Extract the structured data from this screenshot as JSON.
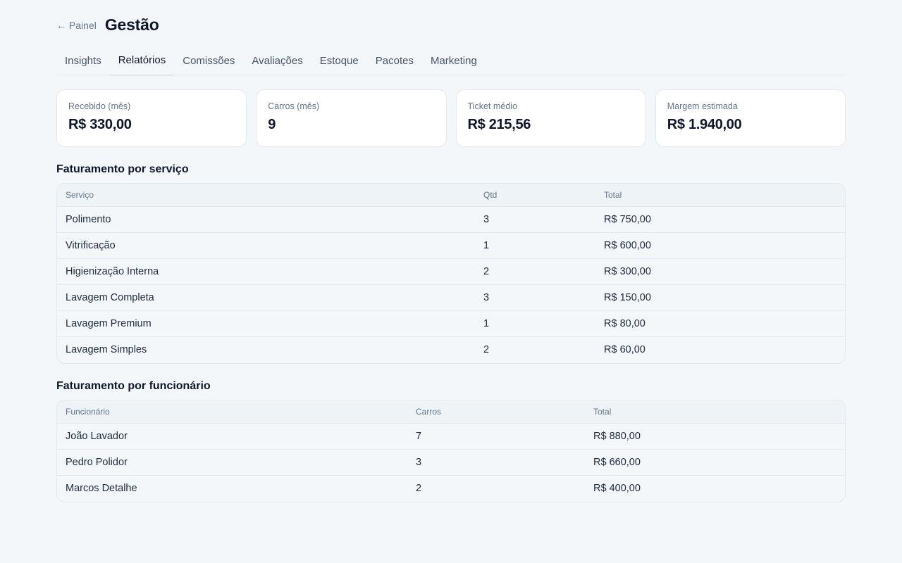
{
  "header": {
    "back_label": "← Painel",
    "title": "Gestão"
  },
  "tabs": [
    {
      "label": "Insights",
      "active": false
    },
    {
      "label": "Relatórios",
      "active": true
    },
    {
      "label": "Comissões",
      "active": false
    },
    {
      "label": "Avaliações",
      "active": false
    },
    {
      "label": "Estoque",
      "active": false
    },
    {
      "label": "Pacotes",
      "active": false
    },
    {
      "label": "Marketing",
      "active": false
    }
  ],
  "kpis": [
    {
      "label": "Recebido (mês)",
      "value": "R$ 330,00"
    },
    {
      "label": "Carros (mês)",
      "value": "9"
    },
    {
      "label": "Ticket médio",
      "value": "R$ 215,56"
    },
    {
      "label": "Margem estimada",
      "value": "R$ 1.940,00"
    }
  ],
  "services": {
    "title": "Faturamento por serviço",
    "columns": [
      "Serviço",
      "Qtd",
      "Total"
    ],
    "rows": [
      [
        "Polimento",
        "3",
        "R$ 750,00"
      ],
      [
        "Vitrificação",
        "1",
        "R$ 600,00"
      ],
      [
        "Higienização Interna",
        "2",
        "R$ 300,00"
      ],
      [
        "Lavagem Completa",
        "3",
        "R$ 150,00"
      ],
      [
        "Lavagem Premium",
        "1",
        "R$ 80,00"
      ],
      [
        "Lavagem Simples",
        "2",
        "R$ 60,00"
      ]
    ]
  },
  "employees": {
    "title": "Faturamento por funcionário",
    "columns": [
      "Funcionário",
      "Carros",
      "Total"
    ],
    "rows": [
      [
        "João Lavador",
        "7",
        "R$ 880,00"
      ],
      [
        "Pedro Polidor",
        "3",
        "R$ 660,00"
      ],
      [
        "Marcos Detalhe",
        "2",
        "R$ 400,00"
      ]
    ]
  }
}
